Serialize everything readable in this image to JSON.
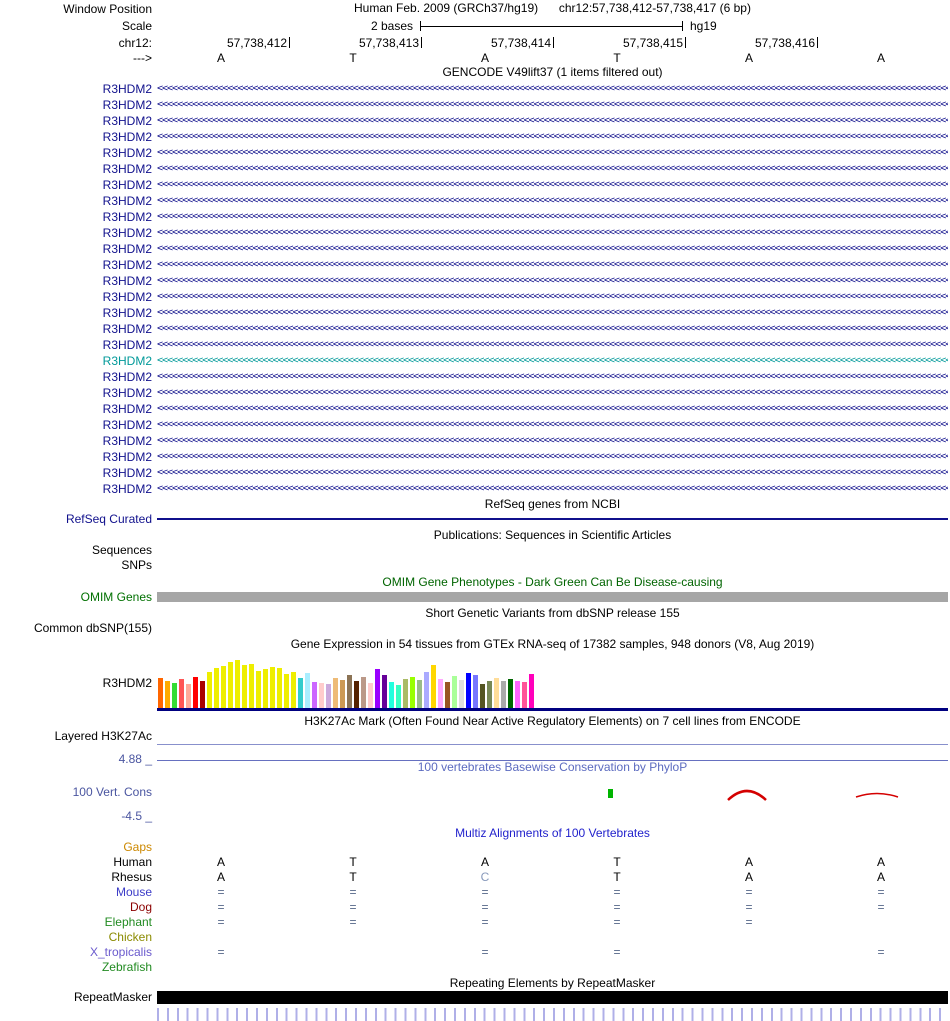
{
  "header": {
    "window_position_label": "Window Position",
    "assembly": "Human Feb. 2009 (GRCh37/hg19)",
    "position": "chr12:57,738,412-57,738,417 (6 bp)",
    "scale_label": "Scale",
    "scale_value": "2 bases",
    "scale_assembly": "hg19",
    "chrom_label": "chr12:",
    "strand_arrow": "--->",
    "coordinates": [
      "57,738,412",
      "57,738,413",
      "57,738,414",
      "57,738,415",
      "57,738,416"
    ],
    "bases": [
      "A",
      "T",
      "A",
      "T",
      "A",
      "A"
    ]
  },
  "tracks": {
    "gencode": {
      "title": "GENCODE V49lift37 (1 items filtered out)",
      "gene": "R3HDM2",
      "row_count": 26,
      "highlight_index": 17,
      "color": "#10108c",
      "highlight_color": "#009999",
      "strand_glyph": "<"
    },
    "refseq": {
      "title": "RefSeq genes from NCBI",
      "label": "RefSeq Curated",
      "color": "#10108c"
    },
    "publications": {
      "title": "Publications: Sequences in Scientific Articles",
      "labels": [
        "Sequences",
        "SNPs"
      ]
    },
    "omim": {
      "title": "OMIM Gene Phenotypes - Dark Green Can Be Disease-causing",
      "label": "OMIM Genes",
      "title_color": "#006400",
      "label_color": "#007000",
      "bar_color": "#a6a6a6"
    },
    "dbsnp": {
      "title": "Short Genetic Variants from dbSNP release 155",
      "label": "Common dbSNP(155)"
    },
    "gtex": {
      "title": "Gene Expression in 54 tissues from GTEx RNA-seq of 17382 samples, 948 donors (V8, Aug 2019)",
      "label": "R3HDM2",
      "baseline_color": "#000080",
      "bars": [
        {
          "c": "#FF6600",
          "h": 30
        },
        {
          "c": "#FFAA00",
          "h": 27
        },
        {
          "c": "#33DD33",
          "h": 25
        },
        {
          "c": "#FF5555",
          "h": 29
        },
        {
          "c": "#FFAA99",
          "h": 24
        },
        {
          "c": "#FF0000",
          "h": 31
        },
        {
          "c": "#AA0000",
          "h": 27
        },
        {
          "c": "#EEEE00",
          "h": 36
        },
        {
          "c": "#EEEE00",
          "h": 40
        },
        {
          "c": "#EEEE00",
          "h": 42
        },
        {
          "c": "#EEEE00",
          "h": 46
        },
        {
          "c": "#EEEE00",
          "h": 48
        },
        {
          "c": "#EEEE00",
          "h": 43
        },
        {
          "c": "#EEEE00",
          "h": 44
        },
        {
          "c": "#EEEE00",
          "h": 37
        },
        {
          "c": "#EEEE00",
          "h": 39
        },
        {
          "c": "#EEEE00",
          "h": 41
        },
        {
          "c": "#EEEE00",
          "h": 40
        },
        {
          "c": "#EEEE00",
          "h": 34
        },
        {
          "c": "#EEEE00",
          "h": 36
        },
        {
          "c": "#33CCCC",
          "h": 30
        },
        {
          "c": "#AAEEFF",
          "h": 35
        },
        {
          "c": "#CC66FF",
          "h": 26
        },
        {
          "c": "#FFCCCC",
          "h": 25
        },
        {
          "c": "#CCAADD",
          "h": 24
        },
        {
          "c": "#EEBB77",
          "h": 30
        },
        {
          "c": "#CC9955",
          "h": 28
        },
        {
          "c": "#8B7355",
          "h": 33
        },
        {
          "c": "#552200",
          "h": 27
        },
        {
          "c": "#BB9988",
          "h": 31
        },
        {
          "c": "#FFCCCC",
          "h": 25
        },
        {
          "c": "#9900FF",
          "h": 39
        },
        {
          "c": "#660099",
          "h": 33
        },
        {
          "c": "#22FFDD",
          "h": 26
        },
        {
          "c": "#33FFC2",
          "h": 23
        },
        {
          "c": "#AABB66",
          "h": 29
        },
        {
          "c": "#99FF00",
          "h": 31
        },
        {
          "c": "#99BB88",
          "h": 28
        },
        {
          "c": "#AAAAFF",
          "h": 36
        },
        {
          "c": "#FFD700",
          "h": 43
        },
        {
          "c": "#FFAAFF",
          "h": 29
        },
        {
          "c": "#995522",
          "h": 26
        },
        {
          "c": "#AAFF99",
          "h": 32
        },
        {
          "c": "#DDDDDD",
          "h": 28
        },
        {
          "c": "#0000FF",
          "h": 35
        },
        {
          "c": "#7777FF",
          "h": 33
        },
        {
          "c": "#555522",
          "h": 24
        },
        {
          "c": "#778855",
          "h": 27
        },
        {
          "c": "#FFDD99",
          "h": 30
        },
        {
          "c": "#AAAAAA",
          "h": 27
        },
        {
          "c": "#006600",
          "h": 29
        },
        {
          "c": "#FF66FF",
          "h": 27
        },
        {
          "c": "#FF5599",
          "h": 26
        },
        {
          "c": "#FF00BB",
          "h": 34
        }
      ]
    },
    "h3k27ac": {
      "title": "H3K27Ac Mark (Often Found Near Active Regulatory Elements) on 7 cell lines from ENCODE",
      "label": "Layered H3K27Ac"
    },
    "conservation": {
      "title": "100 vertebrates Basewise Conservation by PhyloP",
      "label": "100 Vert. Cons",
      "max_label": "4.88 _",
      "min_label": "-4.5 _",
      "title_color": "#5c6bc0",
      "label_color": "#4a55a0",
      "positive_color": "#00b400",
      "negative_color": "#d40000",
      "axis_line_color": "#6670c0"
    },
    "multiz": {
      "title": "Multiz Alignments of 100 Vertebrates",
      "title_color": "#2222cc",
      "species": [
        {
          "name": "Gaps",
          "color": "#cc8800",
          "cells": [
            "",
            "",
            "",
            "",
            "",
            ""
          ]
        },
        {
          "name": "Human",
          "color": "#000000",
          "cells": [
            "A",
            "T",
            "A",
            "T",
            "A",
            "A"
          ]
        },
        {
          "name": "Rhesus",
          "color": "#000000",
          "cells": [
            "A",
            "T",
            "C",
            "T",
            "A",
            "A"
          ],
          "cell_colors": [
            null,
            null,
            "#8899bb",
            null,
            null,
            null
          ]
        },
        {
          "name": "Mouse",
          "color": "#3c3cc8",
          "cells": [
            "=",
            "=",
            "=",
            "=",
            "=",
            "="
          ]
        },
        {
          "name": "Dog",
          "color": "#8b0000",
          "cells": [
            "=",
            "=",
            "=",
            "=",
            "=",
            "="
          ]
        },
        {
          "name": "Elephant",
          "color": "#228b22",
          "cells": [
            "=",
            "=",
            "=",
            "=",
            "=",
            ""
          ]
        },
        {
          "name": "Chicken",
          "color": "#8b8b00",
          "cells": [
            "",
            "",
            "",
            "",
            "",
            ""
          ]
        },
        {
          "name": "X_tropicalis",
          "color": "#6a5acd",
          "cells": [
            "=",
            "",
            "=",
            "=",
            "",
            "="
          ]
        },
        {
          "name": "Zebrafish",
          "color": "#228b22",
          "cells": [
            "",
            "",
            "",
            "",
            "",
            ""
          ]
        }
      ]
    },
    "repeatmasker": {
      "title": "Repeating Elements by RepeatMasker",
      "label": "RepeatMasker",
      "bar_color": "#000000"
    }
  }
}
